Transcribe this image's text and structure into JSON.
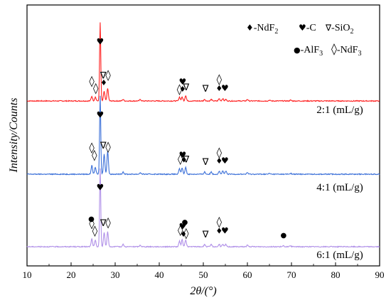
{
  "chart_data": {
    "type": "line",
    "xlabel": "2θ/(°)",
    "ylabel": "Intensity/Counts",
    "xlim": [
      10,
      90
    ],
    "x_ticks": [
      10,
      20,
      30,
      40,
      50,
      60,
      70,
      80,
      90
    ],
    "grid": false,
    "stacked_offset": true,
    "legend": {
      "placement": "top-right",
      "entries": [
        {
          "symbol": "♦",
          "label": "-NdF",
          "sub": "2"
        },
        {
          "symbol": "♥",
          "label": "-C",
          "sub": ""
        },
        {
          "symbol": "∇",
          "label": "-SiO",
          "sub": "2"
        },
        {
          "symbol": "●",
          "label": "-AlF",
          "sub": "3"
        },
        {
          "symbol": "◊",
          "label": "-NdF",
          "sub": "3"
        }
      ]
    },
    "series": [
      {
        "name": "2:1 (mL/g)",
        "color": "#ff2020",
        "baseline": 0.0,
        "peaks": [
          [
            24.7,
            0.06
          ],
          [
            25.5,
            0.05
          ],
          [
            26.6,
            1.0
          ],
          [
            27.5,
            0.12
          ],
          [
            28.3,
            0.16
          ],
          [
            31.8,
            0.02
          ],
          [
            35.7,
            0.02
          ],
          [
            44.6,
            0.05
          ],
          [
            45.2,
            0.05
          ],
          [
            46.0,
            0.07
          ],
          [
            50.3,
            0.02
          ],
          [
            51.8,
            0.02
          ],
          [
            53.6,
            0.03
          ],
          [
            54.4,
            0.03
          ],
          [
            55.1,
            0.02
          ],
          [
            60.0,
            0.02
          ],
          [
            65.0,
            0.01
          ],
          [
            69.8,
            0.01
          ]
        ]
      },
      {
        "name": "4:1 (mL/g)",
        "color": "#3a6fd8",
        "baseline": 0.0,
        "peaks": [
          [
            24.7,
            0.11
          ],
          [
            25.5,
            0.09
          ],
          [
            26.6,
            1.0
          ],
          [
            27.5,
            0.26
          ],
          [
            28.3,
            0.3
          ],
          [
            31.8,
            0.03
          ],
          [
            35.7,
            0.02
          ],
          [
            44.6,
            0.07
          ],
          [
            45.2,
            0.08
          ],
          [
            46.0,
            0.09
          ],
          [
            50.3,
            0.03
          ],
          [
            51.8,
            0.03
          ],
          [
            53.6,
            0.04
          ],
          [
            54.4,
            0.04
          ],
          [
            55.1,
            0.04
          ],
          [
            60.0,
            0.02
          ],
          [
            65.0,
            0.01
          ],
          [
            69.8,
            0.01
          ]
        ]
      },
      {
        "name": "6:1 (mL/g)",
        "color": "#b090e8",
        "baseline": 0.0,
        "peaks": [
          [
            24.7,
            0.1
          ],
          [
            25.5,
            0.08
          ],
          [
            26.6,
            1.0
          ],
          [
            27.5,
            0.18
          ],
          [
            28.3,
            0.19
          ],
          [
            31.8,
            0.03
          ],
          [
            35.7,
            0.02
          ],
          [
            44.6,
            0.07
          ],
          [
            45.2,
            0.09
          ],
          [
            46.0,
            0.09
          ],
          [
            50.3,
            0.03
          ],
          [
            51.8,
            0.03
          ],
          [
            53.6,
            0.03
          ],
          [
            54.4,
            0.03
          ],
          [
            55.1,
            0.03
          ],
          [
            60.0,
            0.02
          ],
          [
            68.2,
            0.01
          ],
          [
            69.8,
            0.01
          ]
        ]
      }
    ],
    "markers": [
      {
        "series": 0,
        "items": [
          {
            "x": 26.6,
            "level": 6.4,
            "symbol": "♥"
          },
          {
            "x": 24.7,
            "level": 1.5,
            "symbol": "◊"
          },
          {
            "x": 25.6,
            "level": 0.6,
            "symbol": "◊"
          },
          {
            "x": 27.3,
            "level": 2.2,
            "symbol": "∇"
          },
          {
            "x": 27.4,
            "level": 1.4,
            "symbol": "♦"
          },
          {
            "x": 28.4,
            "level": 2.2,
            "symbol": "◊"
          },
          {
            "x": 44.6,
            "level": 0.5,
            "symbol": "◊"
          },
          {
            "x": 45.3,
            "level": 1.5,
            "symbol": "♥"
          },
          {
            "x": 45.3,
            "level": 0.6,
            "symbol": "♦"
          },
          {
            "x": 46.1,
            "level": 0.8,
            "symbol": "∇"
          },
          {
            "x": 50.5,
            "level": 0.6,
            "symbol": "∇"
          },
          {
            "x": 53.6,
            "level": 1.7,
            "symbol": "◊"
          },
          {
            "x": 53.6,
            "level": 0.7,
            "symbol": "♦"
          },
          {
            "x": 54.9,
            "level": 0.7,
            "symbol": "♥"
          }
        ]
      },
      {
        "series": 1,
        "items": [
          {
            "x": 26.6,
            "level": 6.4,
            "symbol": "♥"
          },
          {
            "x": 24.7,
            "level": 2.3,
            "symbol": "◊"
          },
          {
            "x": 25.3,
            "level": 1.4,
            "symbol": "◊"
          },
          {
            "x": 27.3,
            "level": 2.6,
            "symbol": "∇"
          },
          {
            "x": 28.4,
            "level": 2.4,
            "symbol": "◊"
          },
          {
            "x": 44.8,
            "level": 0.9,
            "symbol": "◊"
          },
          {
            "x": 45.3,
            "level": 1.5,
            "symbol": "♥"
          },
          {
            "x": 45.6,
            "level": 0.9,
            "symbol": "♦"
          },
          {
            "x": 46.1,
            "level": 0.9,
            "symbol": "∇"
          },
          {
            "x": 50.5,
            "level": 0.6,
            "symbol": "∇"
          },
          {
            "x": 53.6,
            "level": 1.7,
            "symbol": "◊"
          },
          {
            "x": 53.6,
            "level": 0.8,
            "symbol": "♦"
          },
          {
            "x": 54.9,
            "level": 0.8,
            "symbol": "♥"
          }
        ]
      },
      {
        "series": 2,
        "items": [
          {
            "x": 26.6,
            "level": 6.4,
            "symbol": "♥"
          },
          {
            "x": 24.6,
            "level": 2.6,
            "symbol": "●"
          },
          {
            "x": 24.7,
            "level": 1.9,
            "symbol": "◊"
          },
          {
            "x": 25.4,
            "level": 1.0,
            "symbol": "◊"
          },
          {
            "x": 27.3,
            "level": 2.0,
            "symbol": "∇"
          },
          {
            "x": 28.4,
            "level": 2.0,
            "symbol": "◊"
          },
          {
            "x": 44.8,
            "level": 1.1,
            "symbol": "◊"
          },
          {
            "x": 45.3,
            "level": 1.6,
            "symbol": "♥"
          },
          {
            "x": 45.8,
            "level": 2.2,
            "symbol": "●"
          },
          {
            "x": 45.5,
            "level": 0.7,
            "symbol": "♦"
          },
          {
            "x": 46.1,
            "level": 0.7,
            "symbol": "◊"
          },
          {
            "x": 50.5,
            "level": 0.6,
            "symbol": "∇"
          },
          {
            "x": 53.6,
            "level": 2.1,
            "symbol": "◊"
          },
          {
            "x": 53.6,
            "level": 1.1,
            "symbol": "♦"
          },
          {
            "x": 54.9,
            "level": 1.1,
            "symbol": "♥"
          },
          {
            "x": 68.2,
            "level": 0.6,
            "symbol": "●"
          }
        ]
      }
    ]
  }
}
